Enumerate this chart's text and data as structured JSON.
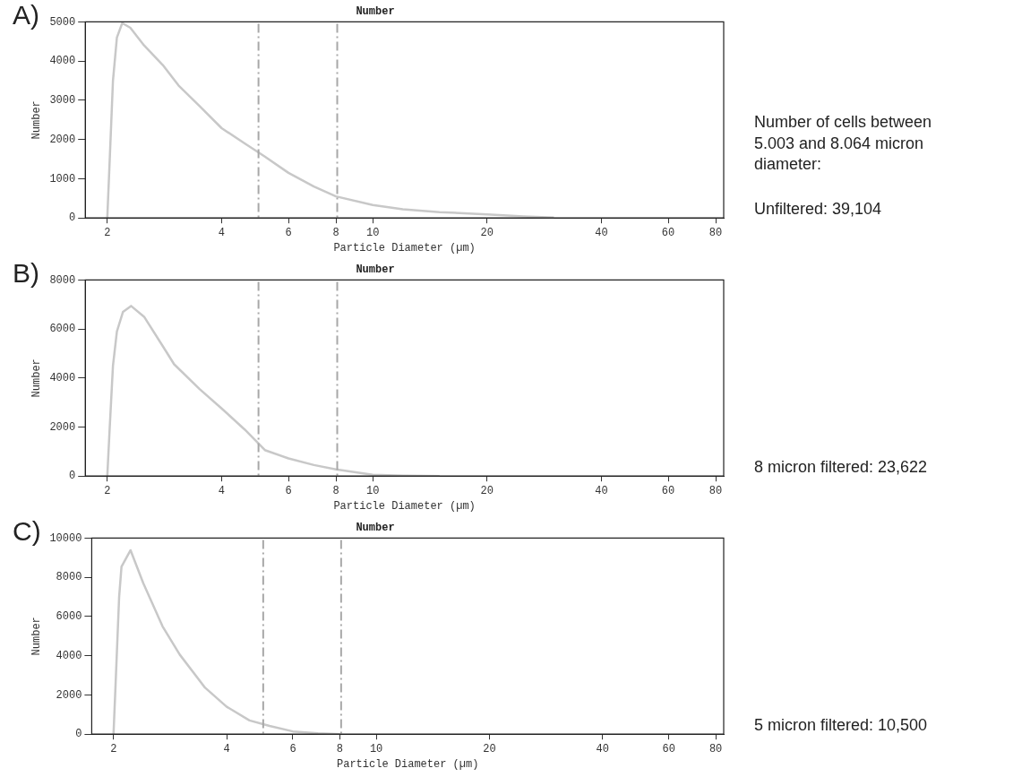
{
  "chart_data": [
    {
      "type": "line",
      "title": "Number",
      "xlabel": "Particle Diameter (µm)",
      "ylabel": "Number",
      "log": "x",
      "grid": false,
      "legend": false,
      "marker": "none",
      "xlim": [
        1.75,
        84
      ],
      "xticks": [
        2,
        4,
        6,
        8,
        10,
        20,
        40,
        60,
        80
      ],
      "ylim": [
        0,
        5000
      ],
      "yticks": [
        0,
        1000,
        2000,
        3000,
        4000,
        5000
      ],
      "x": [
        2.0,
        2.03,
        2.07,
        2.12,
        2.19,
        2.3,
        2.5,
        2.8,
        3.08,
        3.5,
        4,
        4.6,
        5.2,
        6,
        7,
        8,
        10,
        12,
        15,
        20,
        25,
        30
      ],
      "series": [
        {
          "color": "#c8c8c8",
          "values": [
            0,
            1500,
            3500,
            4600,
            4970,
            4850,
            4400,
            3900,
            3380,
            2850,
            2290,
            1900,
            1565,
            1150,
            800,
            550,
            330,
            220,
            150,
            90,
            40,
            10
          ]
        }
      ],
      "ref_lines": [
        {
          "axis": "x",
          "value": 5.003,
          "color": "#a8a8a8",
          "line_style": "dashed"
        },
        {
          "axis": "x",
          "value": 8.064,
          "color": "#a8a8a8",
          "line_style": "dashed"
        }
      ],
      "annotations": [
        "A)",
        "Number of cells between 5.003 and 8.064 micron diameter:",
        "Unfiltered: 39,104"
      ]
    },
    {
      "type": "line",
      "title": "Number",
      "xlabel": "Particle Diameter (µm)",
      "ylabel": "Number",
      "log": "x",
      "grid": false,
      "legend": false,
      "marker": "none",
      "xlim": [
        1.75,
        84
      ],
      "xticks": [
        2,
        4,
        6,
        8,
        10,
        20,
        40,
        60,
        80
      ],
      "ylim": [
        0,
        8000
      ],
      "yticks": [
        0,
        2000,
        4000,
        6000,
        8000
      ],
      "x": [
        2.0,
        2.03,
        2.07,
        2.12,
        2.2,
        2.31,
        2.5,
        2.8,
        3,
        3.5,
        4,
        4.6,
        5.2,
        6,
        7,
        8,
        10,
        12,
        15
      ],
      "series": [
        {
          "color": "#c8c8c8",
          "values": [
            0,
            2000,
            4500,
            5900,
            6700,
            6940,
            6500,
            5300,
            4560,
            3550,
            2760,
            1900,
            1060,
            720,
            450,
            270,
            50,
            20,
            0
          ]
        }
      ],
      "ref_lines": [
        {
          "axis": "x",
          "value": 5.003,
          "color": "#a8a8a8",
          "line_style": "dashed"
        },
        {
          "axis": "x",
          "value": 8.064,
          "color": "#a8a8a8",
          "line_style": "dashed"
        }
      ],
      "annotations": [
        "B)",
        "8 micron filtered: 23,622"
      ]
    },
    {
      "type": "line",
      "title": "Number",
      "xlabel": "Particle Diameter (µm)",
      "ylabel": "Number",
      "log": "x",
      "grid": false,
      "legend": false,
      "marker": "none",
      "xlim": [
        1.75,
        84
      ],
      "xticks": [
        2,
        4,
        6,
        8,
        10,
        20,
        40,
        60,
        80
      ],
      "ylim": [
        0,
        10000
      ],
      "yticks": [
        0,
        2000,
        4000,
        6000,
        8000,
        10000
      ],
      "x": [
        2.0,
        2.03,
        2.07,
        2.1,
        2.22,
        2.4,
        2.7,
        3,
        3.5,
        4,
        4.6,
        5.2,
        6,
        7,
        8
      ],
      "series": [
        {
          "color": "#c8c8c8",
          "values": [
            0,
            3000,
            7000,
            8540,
            9380,
            7700,
            5500,
            4060,
            2380,
            1400,
            700,
            420,
            140,
            40,
            0
          ]
        }
      ],
      "ref_lines": [
        {
          "axis": "x",
          "value": 5.003,
          "color": "#a8a8a8",
          "line_style": "dashed"
        },
        {
          "axis": "x",
          "value": 8.064,
          "color": "#a8a8a8",
          "line_style": "dashed"
        }
      ],
      "annotations": [
        "C)",
        "5 micron filtered: 10,500"
      ]
    }
  ]
}
